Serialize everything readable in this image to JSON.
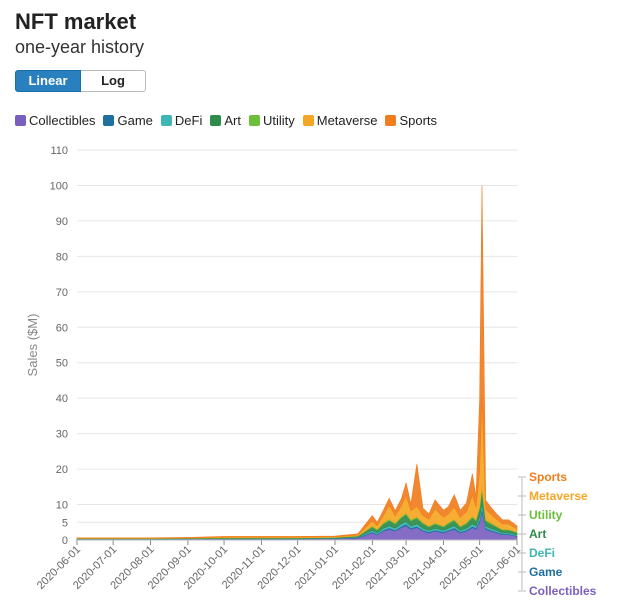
{
  "header": {
    "title": "NFT market",
    "subtitle": "one-year history"
  },
  "scale_toggle": {
    "linear_label": "Linear",
    "log_label": "Log",
    "selected": "Linear"
  },
  "colors": {
    "Collectibles": "#7b5fbf",
    "Game": "#1f6fa3",
    "DeFi": "#3fb5b5",
    "Art": "#2e8b4a",
    "Utility": "#6cbf3a",
    "Metaverse": "#f5a623",
    "Sports": "#f07d1e"
  },
  "legend": [
    "Collectibles",
    "Game",
    "DeFi",
    "Art",
    "Utility",
    "Metaverse",
    "Sports"
  ],
  "chart_data": {
    "type": "area",
    "stacked": true,
    "ylabel": "Sales ($M)",
    "xlabel": "",
    "ylim": [
      0,
      110
    ],
    "y_ticks": [
      0,
      5,
      10,
      20,
      30,
      40,
      50,
      60,
      70,
      80,
      90,
      100,
      110
    ],
    "x_ticks": [
      "2020-06-01",
      "2020-07-01",
      "2020-08-01",
      "2020-09-01",
      "2020-10-01",
      "2020-11-01",
      "2020-12-01",
      "2021-01-01",
      "2021-02-01",
      "2021-03-01",
      "2021-04-01",
      "2021-05-01",
      "2021-06-01"
    ],
    "x": [
      "2020-06-01",
      "2020-07-01",
      "2020-08-01",
      "2020-09-01",
      "2020-10-01",
      "2020-11-01",
      "2020-12-01",
      "2021-01-01",
      "2021-01-20",
      "2021-02-01",
      "2021-02-05",
      "2021-02-10",
      "2021-02-15",
      "2021-02-20",
      "2021-02-25",
      "2021-03-01",
      "2021-03-05",
      "2021-03-10",
      "2021-03-15",
      "2021-03-20",
      "2021-03-25",
      "2021-04-01",
      "2021-04-05",
      "2021-04-10",
      "2021-04-15",
      "2021-04-20",
      "2021-04-25",
      "2021-04-28",
      "2021-05-01",
      "2021-05-03",
      "2021-05-06",
      "2021-05-10",
      "2021-05-15",
      "2021-05-20",
      "2021-05-25",
      "2021-06-01"
    ],
    "series": [
      {
        "name": "Collectibles",
        "values": [
          0.2,
          0.2,
          0.2,
          0.3,
          0.3,
          0.3,
          0.3,
          0.4,
          0.6,
          2.0,
          1.5,
          2.5,
          3.0,
          2.5,
          3.5,
          4.0,
          3.0,
          3.5,
          2.5,
          2.0,
          2.5,
          2.0,
          2.5,
          3.0,
          2.0,
          2.5,
          3.5,
          3.0,
          5.0,
          8.0,
          3.0,
          2.5,
          2.0,
          1.5,
          1.5,
          1.0
        ]
      },
      {
        "name": "Game",
        "values": [
          0.05,
          0.05,
          0.05,
          0.05,
          0.05,
          0.05,
          0.05,
          0.05,
          0.1,
          0.3,
          0.2,
          0.3,
          0.4,
          0.3,
          0.4,
          0.5,
          0.4,
          0.4,
          0.3,
          0.3,
          0.3,
          0.3,
          0.3,
          0.4,
          0.3,
          0.3,
          0.4,
          0.4,
          0.6,
          1.0,
          0.4,
          0.3,
          0.3,
          0.2,
          0.2,
          0.2
        ]
      },
      {
        "name": "DeFi",
        "values": [
          0.05,
          0.05,
          0.05,
          0.05,
          0.05,
          0.05,
          0.05,
          0.05,
          0.1,
          0.4,
          0.3,
          0.5,
          0.6,
          0.5,
          0.6,
          0.7,
          0.5,
          0.6,
          0.5,
          0.4,
          0.5,
          0.4,
          0.5,
          0.6,
          0.4,
          0.5,
          0.6,
          0.5,
          0.8,
          1.2,
          0.5,
          0.5,
          0.4,
          0.3,
          0.3,
          0.3
        ]
      },
      {
        "name": "Art",
        "values": [
          0.1,
          0.1,
          0.1,
          0.1,
          0.2,
          0.2,
          0.2,
          0.2,
          0.3,
          1.0,
          0.8,
          1.2,
          1.5,
          1.2,
          1.8,
          2.0,
          1.5,
          1.7,
          1.3,
          1.0,
          1.2,
          1.0,
          1.3,
          1.5,
          1.0,
          1.3,
          1.8,
          1.5,
          2.5,
          4.0,
          1.5,
          1.3,
          1.0,
          0.8,
          0.8,
          0.6
        ]
      },
      {
        "name": "Utility",
        "values": [
          0.02,
          0.02,
          0.02,
          0.02,
          0.02,
          0.02,
          0.02,
          0.02,
          0.05,
          0.2,
          0.2,
          0.3,
          0.3,
          0.3,
          0.3,
          0.4,
          0.3,
          0.3,
          0.3,
          0.2,
          0.3,
          0.2,
          0.3,
          0.3,
          0.2,
          0.3,
          0.4,
          0.3,
          0.5,
          0.8,
          0.3,
          0.3,
          0.2,
          0.2,
          0.2,
          0.1
        ]
      },
      {
        "name": "Metaverse",
        "values": [
          0.1,
          0.1,
          0.1,
          0.1,
          0.2,
          0.2,
          0.2,
          0.2,
          0.3,
          1.5,
          1.0,
          2.0,
          4.0,
          2.0,
          3.0,
          5.0,
          2.5,
          3.0,
          2.0,
          2.0,
          4.0,
          2.5,
          2.5,
          3.5,
          2.5,
          3.0,
          6.0,
          3.5,
          10.0,
          25.0,
          3.0,
          2.5,
          2.0,
          1.5,
          1.5,
          1.0
        ]
      },
      {
        "name": "Sports",
        "values": [
          0.1,
          0.1,
          0.1,
          0.1,
          0.2,
          0.2,
          0.2,
          0.2,
          0.3,
          1.5,
          1.0,
          1.5,
          2.0,
          1.5,
          2.0,
          3.5,
          2.0,
          12.0,
          2.0,
          1.5,
          2.5,
          2.0,
          2.0,
          3.5,
          2.0,
          2.5,
          6.0,
          3.0,
          20.0,
          60.0,
          2.5,
          2.0,
          1.5,
          1.2,
          1.2,
          0.8
        ]
      }
    ],
    "end_labels": [
      "Sports",
      "Metaverse",
      "Utility",
      "Art",
      "DeFi",
      "Game",
      "Collectibles"
    ]
  }
}
